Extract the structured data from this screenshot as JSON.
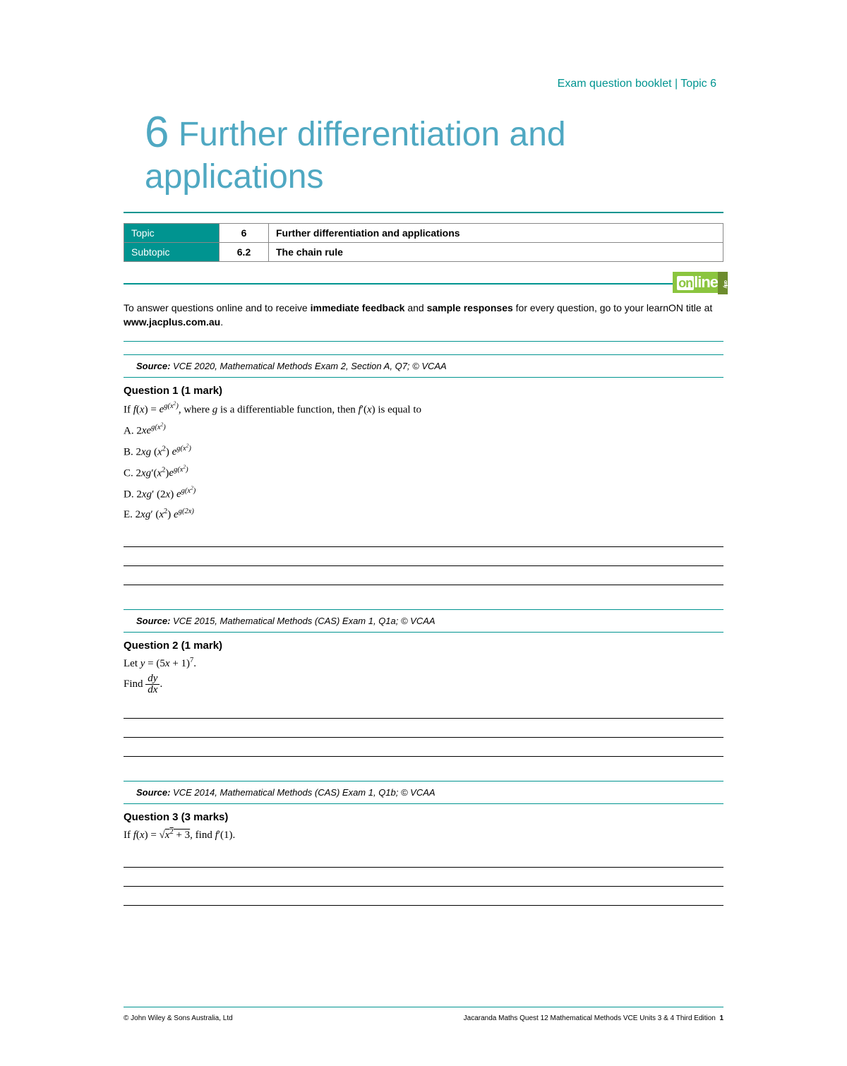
{
  "header": {
    "label": "Exam question booklet | Topic 6"
  },
  "chapter": {
    "number": "6",
    "title": "Further differentiation and applications"
  },
  "topicTable": {
    "rows": [
      {
        "label": "Topic",
        "num": "6",
        "desc": "Further differentiation and applications"
      },
      {
        "label": "Subtopic",
        "num": "6.2",
        "desc": "The chain rule"
      }
    ]
  },
  "onlineBadge": {
    "on": "on",
    "line": "line",
    "only": "only"
  },
  "intro": {
    "text_a": "To answer questions online and to receive ",
    "bold_a": "immediate feedback",
    "text_b": " and ",
    "bold_b": "sample responses",
    "text_c": " for every question, go to your learnON title at ",
    "bold_c": "www.jacplus.com.au",
    "text_d": "."
  },
  "questions": [
    {
      "source_label": "Source:",
      "source": " VCE 2020, Mathematical Methods Exam 2, Section A, Q7; © VCAA",
      "title": "Question 1 (1 mark)",
      "prompt_html": "If <span class='math'>f</span>(<span class='math'>x</span>) = <span class='math'>e<sup>g(x<sup>2</sup>)</sup></span>, where <span class='math'>g</span> is a differentiable function, then <span class='math'>f</span>′(<span class='math'>x</span>) is equal to",
      "options": [
        "A. 2<span class='math'>xe<sup>g(x<sup>2</sup>)</sup></span>",
        "B. 2<span class='math'>xg</span> (<span class='math'>x</span><sup>2</sup>) <span class='math'>e<sup>g(x<sup>2</sup>)</sup></span>",
        "C. 2<span class='math'>xg</span>′(<span class='math'>x</span><sup>2</sup>)<span class='math'>e<sup>g(x<sup>2</sup>)</sup></span>",
        "D. 2<span class='math'>xg</span>′ (2<span class='math'>x</span>) <span class='math'>e<sup>g(x<sup>2</sup>)</sup></span>",
        "E. 2<span class='math'>xg</span>′ (<span class='math'>x</span><sup>2</sup>) <span class='math'>e<sup>g(2x)</sup></span>"
      ],
      "answer_lines": 3
    },
    {
      "source_label": "Source:",
      "source": " VCE 2015, Mathematical Methods (CAS) Exam 1, Q1a; © VCAA",
      "title": "Question 2 (1 mark)",
      "prompt_html": "Let <span class='math'>y</span> = (5<span class='math'>x</span> + 1)<sup>7</sup>.<br>Find <span class='frac'><span class='n math'>dy</span><span class='d math'>dx</span></span>.",
      "options": [],
      "answer_lines": 3
    },
    {
      "source_label": "Source:",
      "source": " VCE 2014, Mathematical Methods (CAS) Exam 1, Q1b; © VCAA",
      "title": "Question 3 (3 marks)",
      "prompt_html": "If <span class='math'>f</span>(<span class='math'>x</span>) = √<span class='sqrt'><span class='math'>x</span><sup>2</sup> + 3</span>, find <span class='math'>f</span>′(1).",
      "options": [],
      "answer_lines": 3
    }
  ],
  "footer": {
    "left": "© John Wiley & Sons Australia, Ltd",
    "right_a": "Jacaranda Maths Quest 12 Mathematical Methods VCE Units 3 & 4 Third Edition",
    "page": "1"
  },
  "colors": {
    "teal": "#009490",
    "titleBlue": "#4fa8c2",
    "green": "#8bc53f"
  }
}
